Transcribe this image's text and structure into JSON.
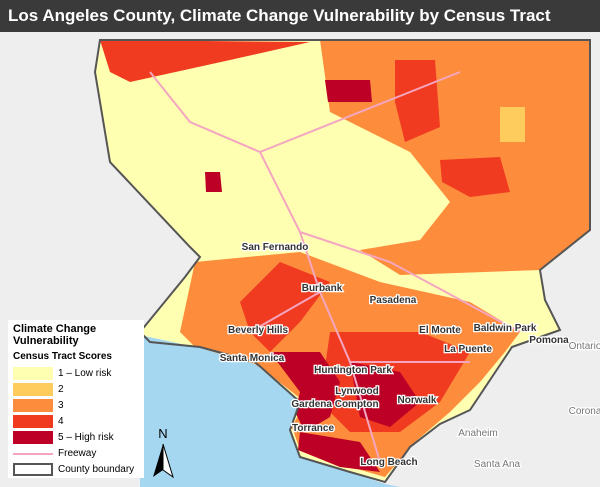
{
  "title": "Los Angeles County, Climate Change Vulnerability by Census Tract",
  "legend": {
    "title": "Climate Change Vulnerability",
    "subtitle": "Census Tract Scores",
    "items": [
      {
        "label": "1 – Low risk",
        "color": "#ffffb2"
      },
      {
        "label": "2",
        "color": "#fecc5c"
      },
      {
        "label": "3",
        "color": "#fd8d3c"
      },
      {
        "label": "4",
        "color": "#f03b20"
      },
      {
        "label": "5 – High risk",
        "color": "#bd0026"
      }
    ],
    "freeway": "Freeway",
    "boundary": "County boundary"
  },
  "north": "N",
  "places": [
    "San Fernando",
    "Burbank",
    "Pasadena",
    "Beverly Hills",
    "El Monte",
    "Baldwin Park",
    "Santa Monica",
    "La Puente",
    "Pomona",
    "Ontario",
    "Huntington Park",
    "Lynwood",
    "Norwalk",
    "Gardena Compton",
    "Torrance",
    "Anaheim",
    "Long Beach",
    "Santa Ana",
    "Corona"
  ]
}
